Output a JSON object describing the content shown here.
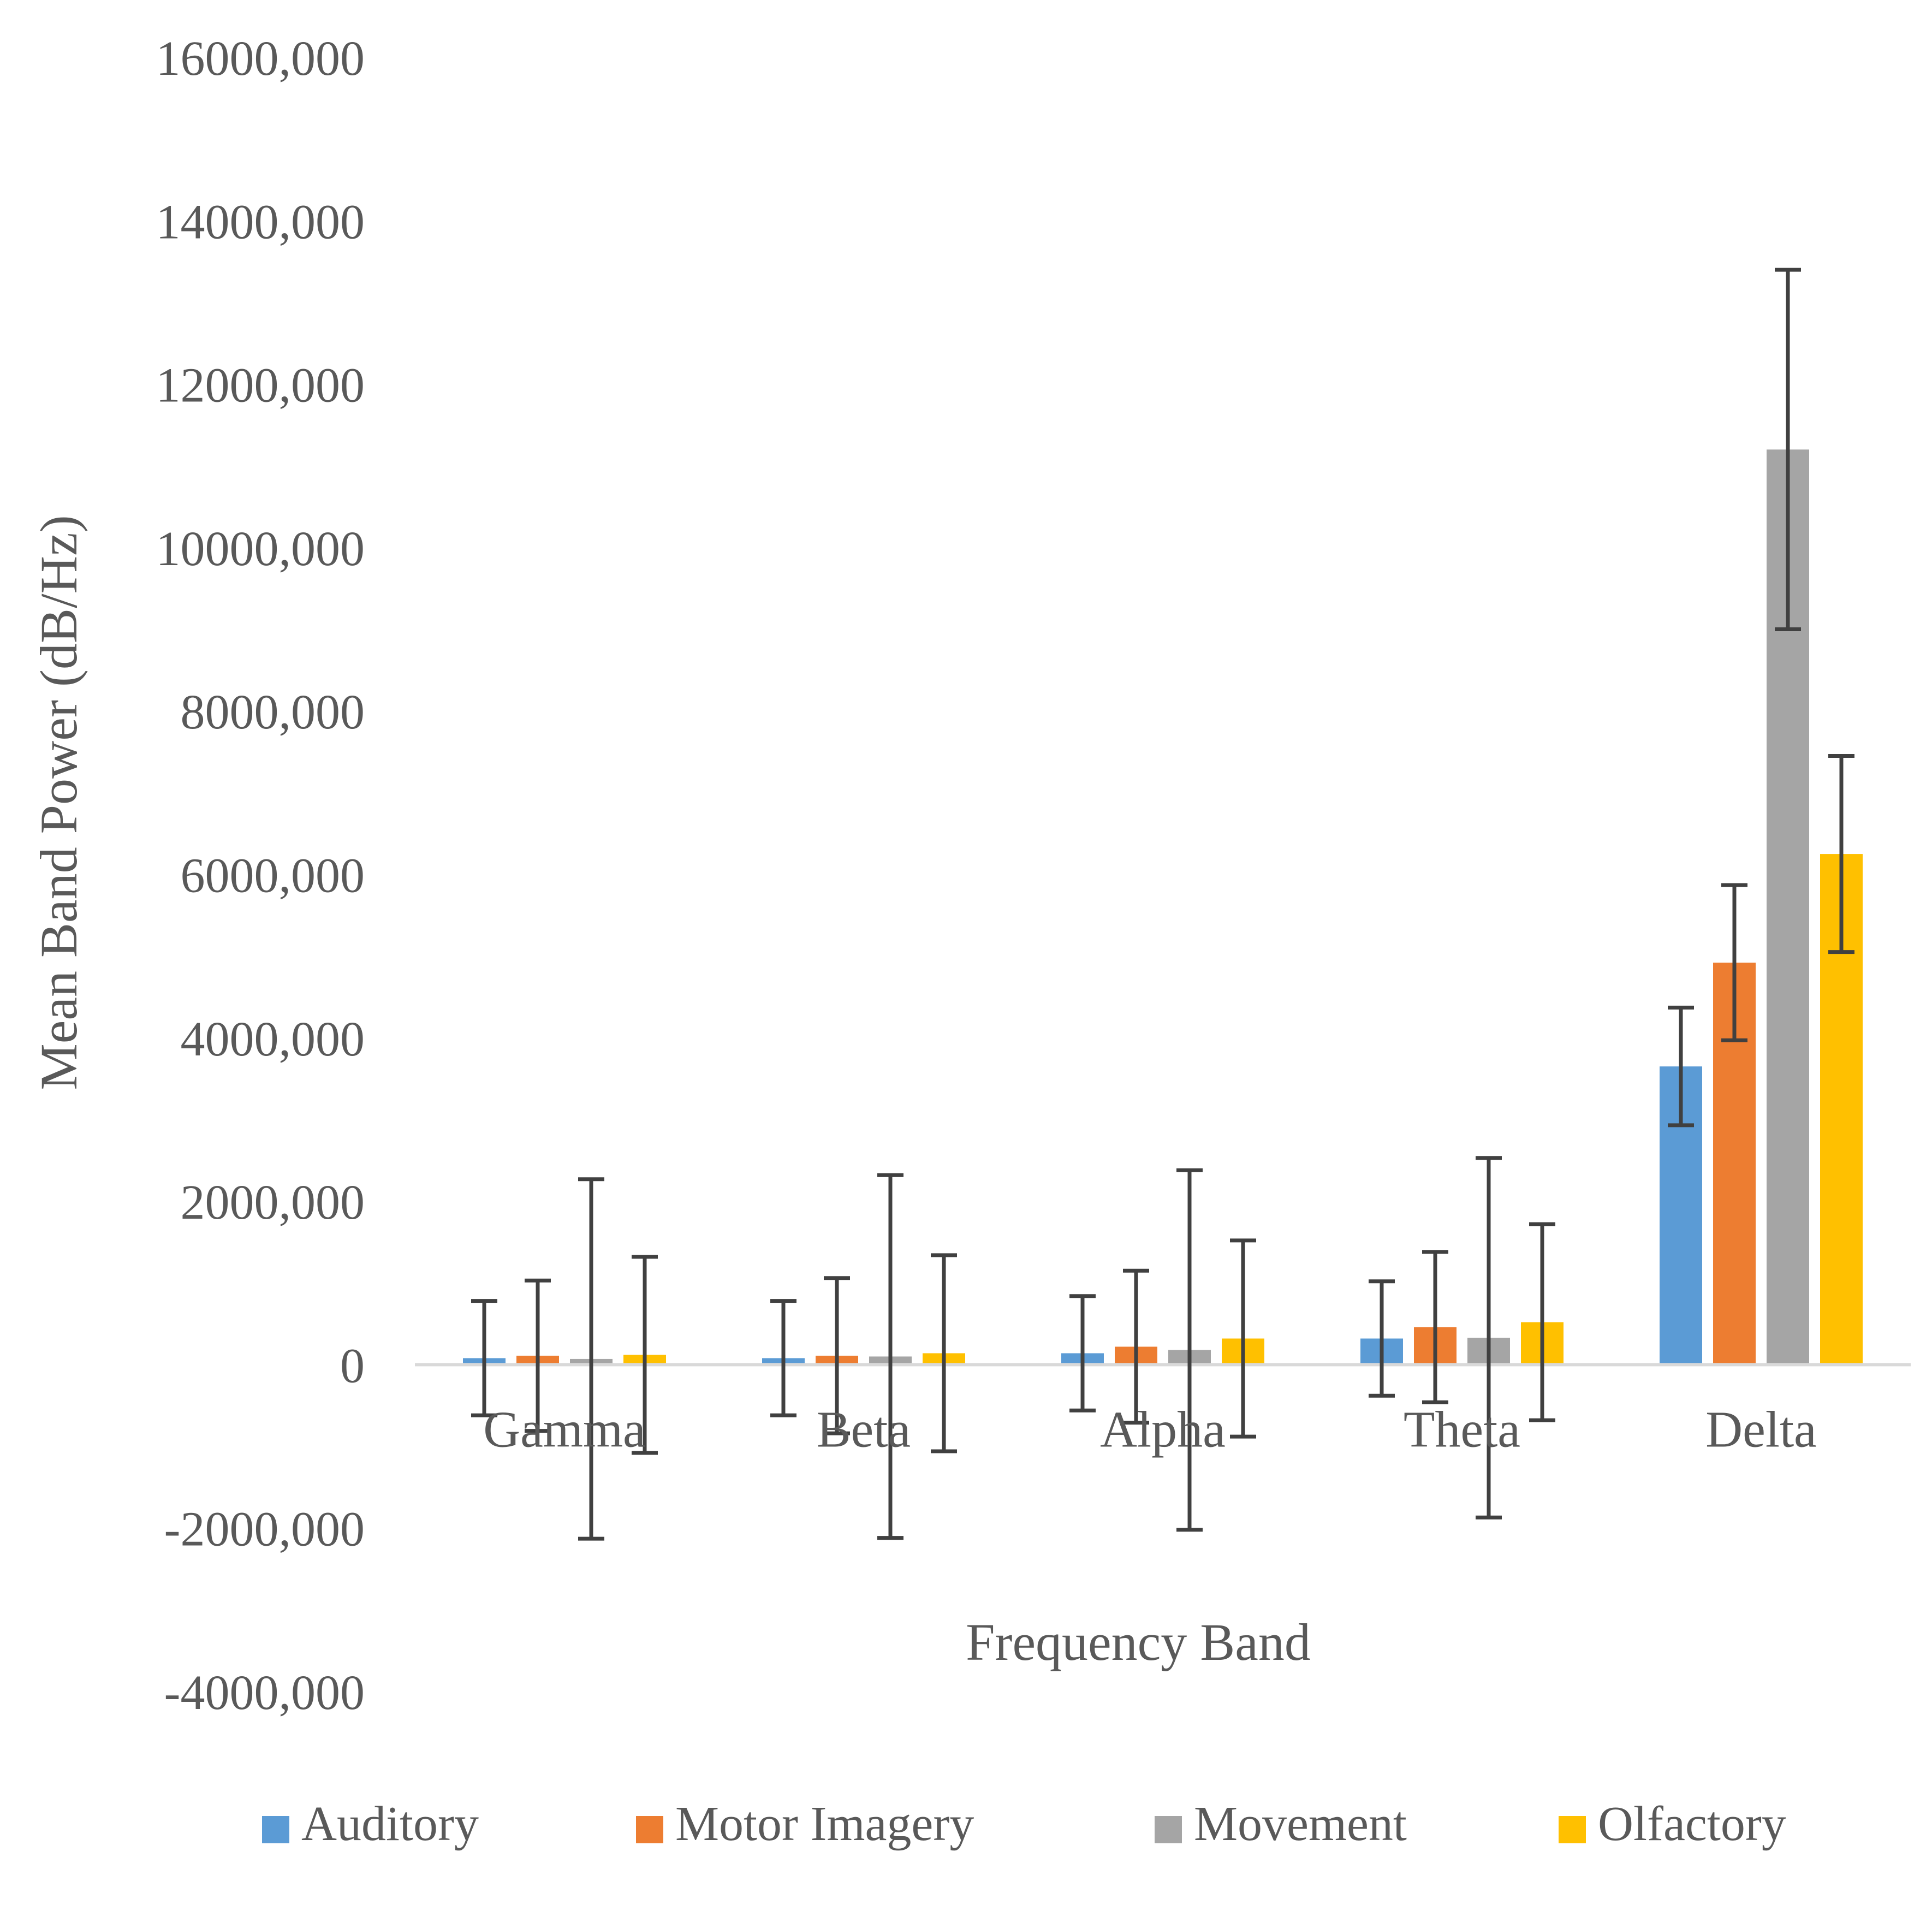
{
  "chart_data": {
    "type": "bar",
    "title": "",
    "xlabel": "Frequency Band",
    "ylabel": "Mean Band Power (dB/Hz)",
    "ylim": [
      -4000000,
      16000000
    ],
    "yticks": [
      16000000,
      14000000,
      12000000,
      10000000,
      8000000,
      6000000,
      4000000,
      2000000,
      0,
      -2000000,
      -4000000
    ],
    "ytick_labels": [
      "16000,000",
      "14000,000",
      "12000,000",
      "10000,000",
      "8000,000",
      "6000,000",
      "4000,000",
      "2000,000",
      "0",
      "-2000,000",
      "-4000,000"
    ],
    "grid": false,
    "legend_position": "bottom",
    "categories": [
      "Gamma",
      "Beta",
      "Alpha",
      "Theta",
      "Delta"
    ],
    "series": [
      {
        "name": "Auditory",
        "color": "#5B9BD5",
        "values": [
          80000,
          80000,
          140000,
          320000,
          3650000
        ],
        "error": [
          700000,
          700000,
          700000,
          700000,
          720000
        ]
      },
      {
        "name": "Motor Imagery",
        "color": "#ED7D31",
        "values": [
          110000,
          110000,
          220000,
          460000,
          4920000
        ],
        "error": [
          920000,
          950000,
          930000,
          920000,
          950000
        ]
      },
      {
        "name": "Movement",
        "color": "#A5A5A5",
        "values": [
          70000,
          100000,
          180000,
          330000,
          11200000
        ],
        "error": [
          2200000,
          2220000,
          2200000,
          2200000,
          2200000
        ]
      },
      {
        "name": "Olfactory",
        "color": "#FFC000",
        "values": [
          120000,
          140000,
          320000,
          520000,
          6250000
        ],
        "error": [
          1200000,
          1200000,
          1200000,
          1200000,
          1200000
        ]
      }
    ],
    "axis_color": "#D9D9D9",
    "error_bar_color": "#404040"
  }
}
